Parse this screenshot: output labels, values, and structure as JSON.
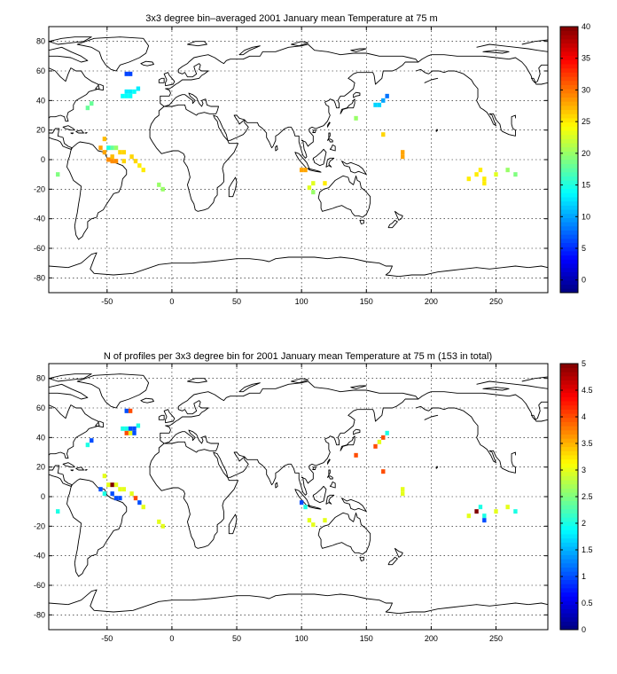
{
  "chart_data": [
    {
      "type": "heatmap",
      "title": "3x3 degree bin–averaged 2001 January mean Temperature at 75 m",
      "xlabel": "",
      "ylabel": "",
      "xlim": [
        -95,
        290
      ],
      "ylim": [
        -90,
        90
      ],
      "x_ticks": [
        "-50",
        "0",
        "50",
        "100",
        "150",
        "200",
        "250"
      ],
      "y_ticks": [
        "80",
        "60",
        "40",
        "20",
        "0",
        "-20",
        "-40",
        "-60",
        "-80"
      ],
      "grid": true,
      "colorbar": {
        "min": -2,
        "max": 40,
        "ticks": [
          "40",
          "35",
          "30",
          "25",
          "20",
          "15",
          "10",
          "5",
          "0"
        ],
        "colormap": "jet"
      },
      "cells": [
        {
          "lon": -35,
          "lat": 58,
          "value": 6
        },
        {
          "lon": -32,
          "lat": 58,
          "value": 6
        },
        {
          "lon": -26,
          "lat": 48,
          "value": 13
        },
        {
          "lon": -35,
          "lat": 46,
          "value": 13
        },
        {
          "lon": -32,
          "lat": 46,
          "value": 13
        },
        {
          "lon": -29,
          "lat": 46,
          "value": 14
        },
        {
          "lon": -35,
          "lat": 43,
          "value": 14
        },
        {
          "lon": -32,
          "lat": 43,
          "value": 14
        },
        {
          "lon": -38,
          "lat": 43,
          "value": 14
        },
        {
          "lon": -62,
          "lat": 38,
          "value": 18
        },
        {
          "lon": -65,
          "lat": 35,
          "value": 18
        },
        {
          "lon": -52,
          "lat": 14,
          "value": 27
        },
        {
          "lon": -55,
          "lat": 8,
          "value": 28
        },
        {
          "lon": -52,
          "lat": 5,
          "value": 28
        },
        {
          "lon": -46,
          "lat": 8,
          "value": 18
        },
        {
          "lon": -43,
          "lat": 8,
          "value": 20
        },
        {
          "lon": -49,
          "lat": 8,
          "value": 15
        },
        {
          "lon": -40,
          "lat": 5,
          "value": 26
        },
        {
          "lon": -37,
          "lat": 5,
          "value": 26
        },
        {
          "lon": -46,
          "lat": 2,
          "value": 27
        },
        {
          "lon": -49,
          "lat": 0,
          "value": 29
        },
        {
          "lon": -46,
          "lat": -1,
          "value": 29
        },
        {
          "lon": -43,
          "lat": -1,
          "value": 29
        },
        {
          "lon": -31,
          "lat": 2,
          "value": 26
        },
        {
          "lon": -28,
          "lat": -1,
          "value": 26
        },
        {
          "lon": -25,
          "lat": -4,
          "value": 25
        },
        {
          "lon": -22,
          "lat": -7,
          "value": 25
        },
        {
          "lon": -37,
          "lat": -1,
          "value": 26
        },
        {
          "lon": -88,
          "lat": -10,
          "value": 19
        },
        {
          "lon": -10,
          "lat": -17,
          "value": 20
        },
        {
          "lon": -7,
          "lat": -20,
          "value": 20
        },
        {
          "lon": 100,
          "lat": -7,
          "value": 28
        },
        {
          "lon": 103,
          "lat": -7,
          "value": 28
        },
        {
          "lon": 109,
          "lat": -16,
          "value": 23
        },
        {
          "lon": 106,
          "lat": -19,
          "value": 23
        },
        {
          "lon": 109,
          "lat": -22,
          "value": 20
        },
        {
          "lon": 118,
          "lat": -16,
          "value": 25
        },
        {
          "lon": 166,
          "lat": 43,
          "value": 8
        },
        {
          "lon": 163,
          "lat": 40,
          "value": 10
        },
        {
          "lon": 160,
          "lat": 37,
          "value": 12
        },
        {
          "lon": 157,
          "lat": 37,
          "value": 12
        },
        {
          "lon": 142,
          "lat": 28,
          "value": 20
        },
        {
          "lon": 163,
          "lat": 17,
          "value": 26
        },
        {
          "lon": 178,
          "lat": 5,
          "value": 28
        },
        {
          "lon": 178,
          "lat": 2,
          "value": 28
        },
        {
          "lon": 229,
          "lat": -13,
          "value": 25
        },
        {
          "lon": 235,
          "lat": -10,
          "value": 25
        },
        {
          "lon": 238,
          "lat": -7,
          "value": 25
        },
        {
          "lon": 241,
          "lat": -13,
          "value": 25
        },
        {
          "lon": 241,
          "lat": -16,
          "value": 25
        },
        {
          "lon": 250,
          "lat": -10,
          "value": 23
        },
        {
          "lon": 259,
          "lat": -7,
          "value": 20
        },
        {
          "lon": 265,
          "lat": -10,
          "value": 19
        }
      ]
    },
    {
      "type": "heatmap",
      "title": "N of profiles per 3x3 degree bin for 2001 January mean Temperature at 75 m (153 in total)",
      "xlabel": "",
      "ylabel": "",
      "xlim": [
        -95,
        290
      ],
      "ylim": [
        -90,
        90
      ],
      "x_ticks": [
        "-50",
        "0",
        "50",
        "100",
        "150",
        "200",
        "250"
      ],
      "y_ticks": [
        "80",
        "60",
        "40",
        "20",
        "0",
        "-20",
        "-40",
        "-60",
        "-80"
      ],
      "grid": true,
      "colorbar": {
        "min": 0,
        "max": 5,
        "ticks": [
          "5",
          "4.5",
          "4",
          "3.5",
          "3",
          "2.5",
          "2",
          "1.5",
          "1",
          "0.5",
          "0"
        ],
        "colormap": "jet"
      },
      "cells": [
        {
          "lon": -35,
          "lat": 58,
          "value": 1
        },
        {
          "lon": -32,
          "lat": 58,
          "value": 4
        },
        {
          "lon": -26,
          "lat": 48,
          "value": 2
        },
        {
          "lon": -35,
          "lat": 46,
          "value": 2
        },
        {
          "lon": -32,
          "lat": 46,
          "value": 1
        },
        {
          "lon": -29,
          "lat": 46,
          "value": 1
        },
        {
          "lon": -35,
          "lat": 43,
          "value": 4
        },
        {
          "lon": -32,
          "lat": 43,
          "value": 3
        },
        {
          "lon": -29,
          "lat": 43,
          "value": 1
        },
        {
          "lon": -38,
          "lat": 46,
          "value": 2
        },
        {
          "lon": -62,
          "lat": 38,
          "value": 1
        },
        {
          "lon": -65,
          "lat": 35,
          "value": 2
        },
        {
          "lon": -52,
          "lat": 14,
          "value": 3
        },
        {
          "lon": -55,
          "lat": 5,
          "value": 1
        },
        {
          "lon": -52,
          "lat": 2,
          "value": 2
        },
        {
          "lon": -49,
          "lat": 8,
          "value": 3
        },
        {
          "lon": -46,
          "lat": 8,
          "value": 5
        },
        {
          "lon": -43,
          "lat": 8,
          "value": 3
        },
        {
          "lon": -40,
          "lat": 5,
          "value": 3
        },
        {
          "lon": -37,
          "lat": 5,
          "value": 3
        },
        {
          "lon": -46,
          "lat": 2,
          "value": 1
        },
        {
          "lon": -43,
          "lat": -1,
          "value": 1
        },
        {
          "lon": -40,
          "lat": -1,
          "value": 1
        },
        {
          "lon": -31,
          "lat": 2,
          "value": 3
        },
        {
          "lon": -28,
          "lat": -1,
          "value": 4
        },
        {
          "lon": -25,
          "lat": -4,
          "value": 1
        },
        {
          "lon": -22,
          "lat": -7,
          "value": 3
        },
        {
          "lon": -88,
          "lat": -10,
          "value": 2
        },
        {
          "lon": -10,
          "lat": -17,
          "value": 3
        },
        {
          "lon": -7,
          "lat": -20,
          "value": 3
        },
        {
          "lon": 100,
          "lat": -4,
          "value": 1
        },
        {
          "lon": 103,
          "lat": -7,
          "value": 2
        },
        {
          "lon": 106,
          "lat": -16,
          "value": 3
        },
        {
          "lon": 109,
          "lat": -19,
          "value": 3
        },
        {
          "lon": 118,
          "lat": -16,
          "value": 3
        },
        {
          "lon": 166,
          "lat": 43,
          "value": 2
        },
        {
          "lon": 163,
          "lat": 40,
          "value": 4
        },
        {
          "lon": 160,
          "lat": 37,
          "value": 3
        },
        {
          "lon": 157,
          "lat": 34,
          "value": 4
        },
        {
          "lon": 142,
          "lat": 28,
          "value": 4
        },
        {
          "lon": 163,
          "lat": 17,
          "value": 4
        },
        {
          "lon": 178,
          "lat": 5,
          "value": 3
        },
        {
          "lon": 178,
          "lat": 2,
          "value": 3
        },
        {
          "lon": 229,
          "lat": -13,
          "value": 3
        },
        {
          "lon": 235,
          "lat": -10,
          "value": 5
        },
        {
          "lon": 238,
          "lat": -7,
          "value": 2
        },
        {
          "lon": 241,
          "lat": -13,
          "value": 2
        },
        {
          "lon": 241,
          "lat": -16,
          "value": 1
        },
        {
          "lon": 250,
          "lat": -10,
          "value": 3
        },
        {
          "lon": 259,
          "lat": -7,
          "value": 3
        },
        {
          "lon": 265,
          "lat": -10,
          "value": 2
        }
      ]
    }
  ]
}
